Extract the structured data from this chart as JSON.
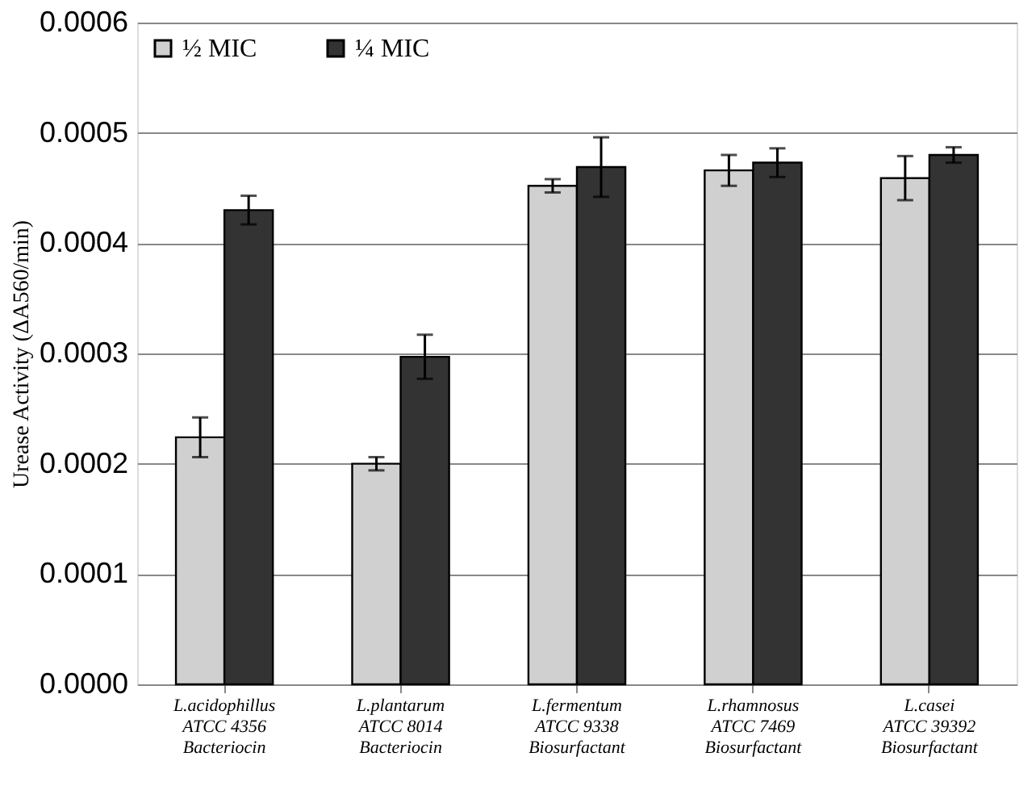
{
  "chart_data": {
    "type": "bar",
    "ylabel": "Urease Activity (ΔA560/min)",
    "categories": [
      "L.acidophillus\nATCC 4356\nBacteriocin",
      "L.plantarum\nATCC 8014\nBacteriocin",
      "L.fermentum\nATCC 9338\nBiosurfactant",
      "L.rhamnosus\nATCC 7469\nBiosurfactant",
      "L.casei\nATCC 39392\nBiosurfactant"
    ],
    "series": [
      {
        "name": "½ MIC",
        "color": "#d0d0d0",
        "values": [
          0.000224,
          0.0002,
          0.000452,
          0.000466,
          0.000459
        ],
        "errors": [
          1.8e-05,
          6e-06,
          6e-06,
          1.4e-05,
          2e-05
        ]
      },
      {
        "name": "¼ MIC",
        "color": "#333333",
        "values": [
          0.00043,
          0.000297,
          0.000469,
          0.000473,
          0.00048
        ],
        "errors": [
          1.3e-05,
          2e-05,
          2.7e-05,
          1.3e-05,
          7e-06
        ]
      }
    ],
    "ylim": [
      0,
      0.0006
    ],
    "yticks": [
      {
        "value": 0,
        "label": "0.0000"
      },
      {
        "value": 0.0001,
        "label": "0.0001"
      },
      {
        "value": 0.0002,
        "label": "0.0002"
      },
      {
        "value": 0.0003,
        "label": "0.0003"
      },
      {
        "value": 0.0004,
        "label": "0.0004"
      },
      {
        "value": 0.0005,
        "label": "0.0005"
      },
      {
        "value": 0.0006,
        "label": "0.0006"
      }
    ],
    "grid": "y",
    "legend": "top left"
  }
}
